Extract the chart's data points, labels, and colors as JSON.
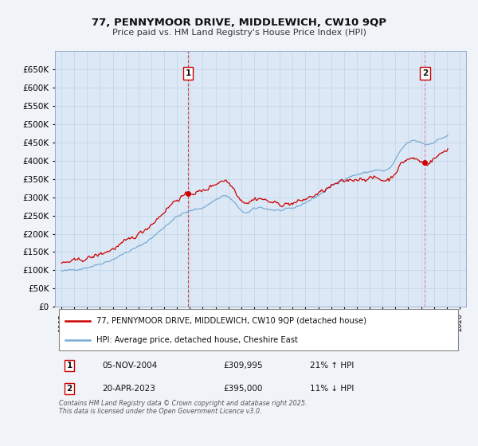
{
  "title": "77, PENNYMOOR DRIVE, MIDDLEWICH, CW10 9QP",
  "subtitle": "Price paid vs. HM Land Registry's House Price Index (HPI)",
  "bg_color": "#f0f4f8",
  "plot_bg_color": "#dce8f5",
  "grid_color": "#b8cfe0",
  "red_color": "#cc0000",
  "blue_color": "#7aacd4",
  "ylim": [
    0,
    700000
  ],
  "yticks": [
    0,
    50000,
    100000,
    150000,
    200000,
    250000,
    300000,
    350000,
    400000,
    450000,
    500000,
    550000,
    600000,
    650000
  ],
  "xlim_start": 1994.5,
  "xlim_end": 2026.5,
  "sale1_x": 2004.854,
  "sale1_y": 309995,
  "sale2_x": 2023.3,
  "sale2_y": 395000,
  "legend_line1": "77, PENNYMOOR DRIVE, MIDDLEWICH, CW10 9QP (detached house)",
  "legend_line2": "HPI: Average price, detached house, Cheshire East",
  "table_row1": [
    "1",
    "05-NOV-2004",
    "£309,995",
    "21% ↑ HPI"
  ],
  "table_row2": [
    "2",
    "20-APR-2023",
    "£395,000",
    "11% ↓ HPI"
  ],
  "footer": "Contains HM Land Registry data © Crown copyright and database right 2025.\nThis data is licensed under the Open Government Licence v3.0."
}
